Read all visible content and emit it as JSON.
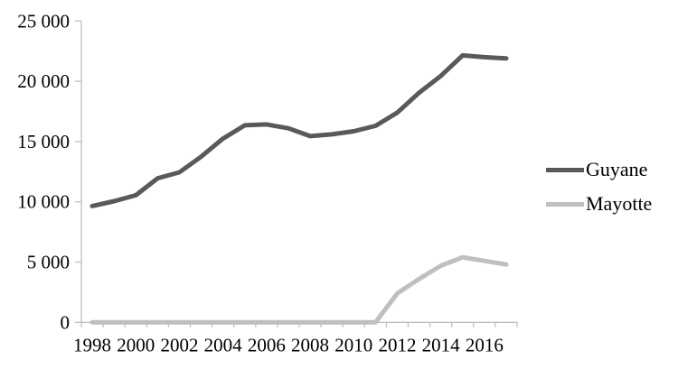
{
  "chart_data": {
    "type": "line",
    "x": [
      1998,
      1999,
      2000,
      2001,
      2002,
      2003,
      2004,
      2005,
      2006,
      2007,
      2008,
      2009,
      2010,
      2011,
      2012,
      2013,
      2014,
      2015,
      2016,
      2017
    ],
    "series": [
      {
        "name": "Guyane",
        "color": "#595959",
        "values": [
          9650,
          10050,
          10550,
          11950,
          12450,
          13750,
          15250,
          16350,
          16420,
          16100,
          15450,
          15600,
          15850,
          16300,
          17400,
          19050,
          20450,
          22150,
          22000,
          21900
        ]
      },
      {
        "name": "Mayotte",
        "color": "#bfbfbf",
        "values": [
          0,
          0,
          0,
          0,
          0,
          0,
          0,
          0,
          0,
          0,
          0,
          0,
          0,
          0,
          2400,
          3600,
          4700,
          5400,
          5100,
          4800
        ]
      }
    ],
    "title": "",
    "xlabel": "",
    "ylabel": "",
    "ylim": [
      0,
      25000
    ],
    "y_ticks": [
      0,
      5000,
      10000,
      15000,
      20000,
      25000
    ],
    "y_tick_labels": [
      "0",
      "5 000",
      "10 000",
      "15 000",
      "20 000",
      "25 000"
    ],
    "x_tick_labels": [
      "1998",
      "2000",
      "2002",
      "2004",
      "2006",
      "2008",
      "2010",
      "2012",
      "2014",
      "2016"
    ],
    "grid": false,
    "legend_position": "right",
    "axis_color": "#bfbfbf",
    "text_color": "#000000"
  }
}
